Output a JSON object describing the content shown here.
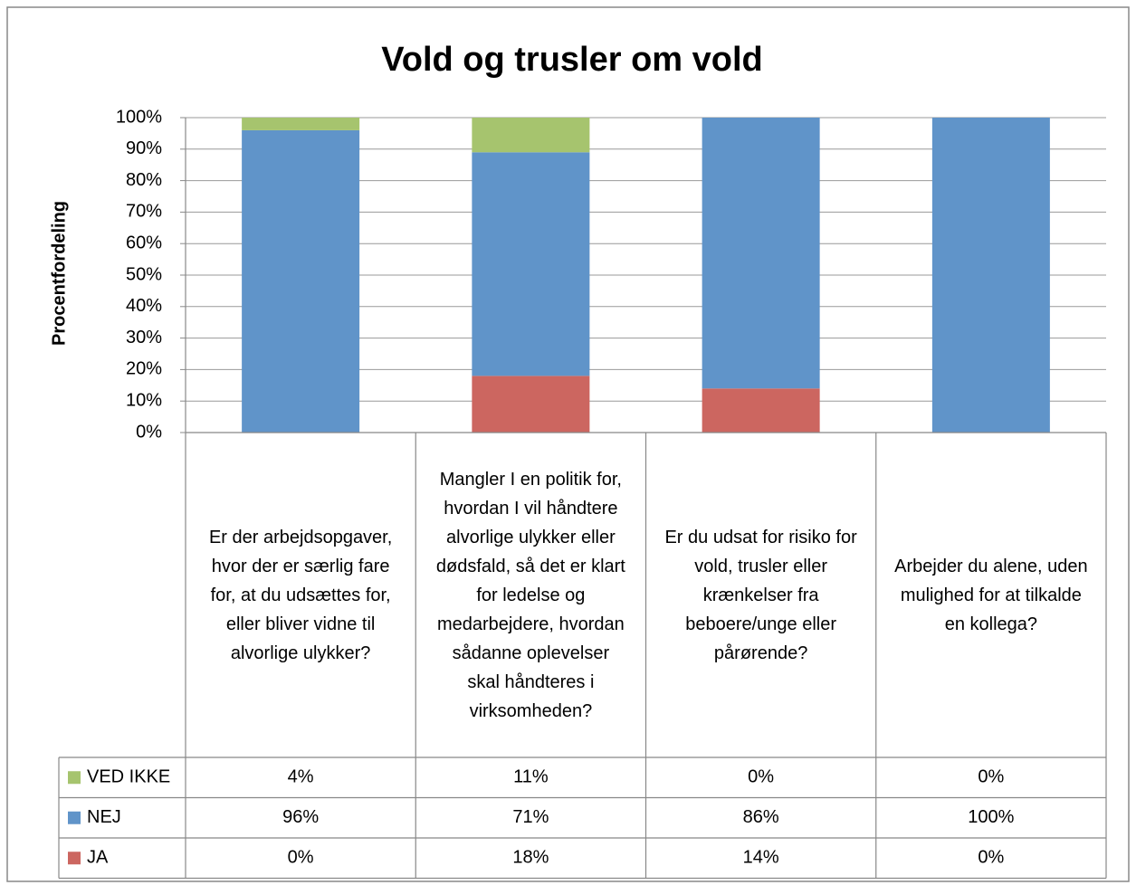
{
  "chart_data": {
    "type": "stacked-bar",
    "title": "Vold og trusler om vold",
    "ylabel": "Procentfordeling",
    "categories": [
      "Er der arbejdsopgaver, hvor der er særlig fare for, at du udsættes for, eller bliver vidne til alvorlige ulykker?",
      "Mangler I en politik for, hvordan I vil håndtere alvorlige ulykker eller dødsfald, så det er klart for ledelse og medarbejdere, hvordan sådanne oplevelser skal håndteres i virksomheden?",
      "Er du udsat for risiko for vold, trusler eller krænkelser fra beboere/unge eller pårørende?",
      "Arbejder du alene, uden mulighed for at tilkalde en kollega?"
    ],
    "series": [
      {
        "name": "VED IKKE",
        "color": "#a6c46e",
        "values": [
          4,
          11,
          0,
          0
        ],
        "value_labels": [
          "4%",
          "11%",
          "0%",
          "0%"
        ]
      },
      {
        "name": "NEJ",
        "color": "#6094c9",
        "values": [
          96,
          71,
          86,
          100
        ],
        "value_labels": [
          "96%",
          "71%",
          "86%",
          "100%"
        ]
      },
      {
        "name": "JA",
        "color": "#cc6660",
        "values": [
          0,
          18,
          14,
          0
        ],
        "value_labels": [
          "0%",
          "18%",
          "14%",
          "0%"
        ]
      }
    ],
    "ylim": [
      0,
      100
    ],
    "yticks": [
      {
        "value": 0,
        "label": "0%"
      },
      {
        "value": 10,
        "label": "10%"
      },
      {
        "value": 20,
        "label": "20%"
      },
      {
        "value": 30,
        "label": "30%"
      },
      {
        "value": 40,
        "label": "40%"
      },
      {
        "value": 50,
        "label": "50%"
      },
      {
        "value": 60,
        "label": "60%"
      },
      {
        "value": 70,
        "label": "70%"
      },
      {
        "value": 80,
        "label": "80%"
      },
      {
        "value": 90,
        "label": "90%"
      },
      {
        "value": 100,
        "label": "100%"
      }
    ],
    "grid": true,
    "data_table": true
  }
}
